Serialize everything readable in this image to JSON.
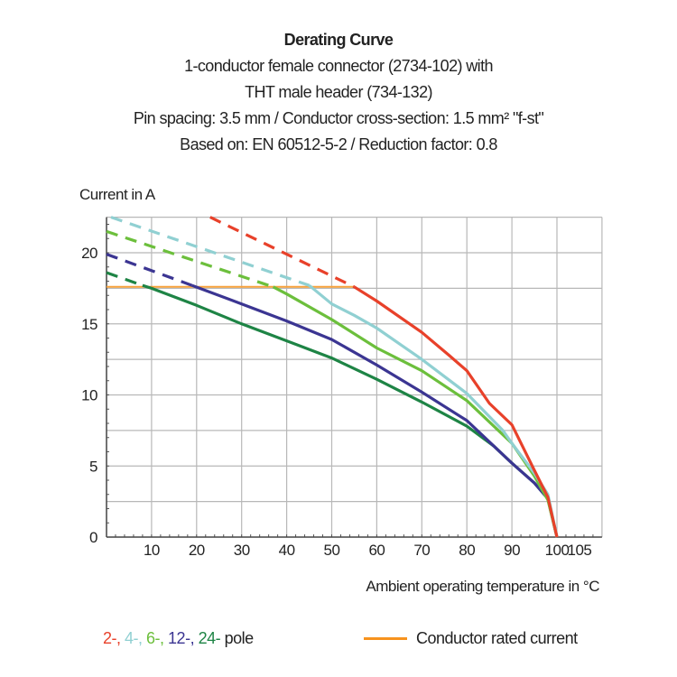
{
  "header": {
    "title": "Derating Curve",
    "lines": [
      "1-conductor female connector (2734-102) with",
      "THT male header (734-132)",
      "Pin spacing: 3.5 mm / Conductor cross-section: 1.5 mm² \"f-st\"",
      "Based on: EN 60512-5-2 / Reduction factor: 0.8"
    ]
  },
  "chart_data": {
    "type": "line",
    "title": "Derating Curve",
    "xlabel": "Ambient operating temperature in °C",
    "ylabel": "Current in A",
    "xlim": [
      0,
      110
    ],
    "ylim": [
      0,
      22.5
    ],
    "x_ticks": [
      10,
      20,
      30,
      40,
      50,
      60,
      70,
      80,
      90,
      100,
      105
    ],
    "y_ticks": [
      0,
      5,
      10,
      15,
      20
    ],
    "grid": true,
    "series": [
      {
        "name": "2-",
        "color": "#e8412a",
        "dashed": [
          [
            23,
            22.5
          ],
          [
            55,
            17.6
          ]
        ],
        "solid": [
          [
            55,
            17.6
          ],
          [
            60,
            16.6
          ],
          [
            70,
            14.4
          ],
          [
            76,
            12.8
          ],
          [
            80,
            11.7
          ],
          [
            85,
            9.4
          ],
          [
            90,
            7.9
          ],
          [
            95,
            4.7
          ],
          [
            98,
            2.8
          ],
          [
            100,
            0
          ]
        ]
      },
      {
        "name": "4-",
        "color": "#90d0d2",
        "dashed": [
          [
            1,
            22.5
          ],
          [
            45,
            17.7
          ]
        ],
        "solid": [
          [
            45,
            17.7
          ],
          [
            50,
            16.4
          ],
          [
            55,
            15.6
          ],
          [
            60,
            14.7
          ],
          [
            70,
            12.5
          ],
          [
            80,
            10.1
          ],
          [
            88,
            7.5
          ],
          [
            90,
            6.6
          ],
          [
            95,
            4.5
          ],
          [
            98,
            3.0
          ],
          [
            100,
            0
          ]
        ]
      },
      {
        "name": "6-",
        "color": "#6cbf3c",
        "dashed": [
          [
            0,
            21.5
          ],
          [
            37,
            17.6
          ]
        ],
        "solid": [
          [
            37,
            17.6
          ],
          [
            40,
            17.1
          ],
          [
            50,
            15.3
          ],
          [
            60,
            13.3
          ],
          [
            70,
            11.7
          ],
          [
            80,
            9.6
          ],
          [
            90,
            6.6
          ],
          [
            95,
            4.3
          ],
          [
            98,
            2.6
          ],
          [
            100,
            0
          ]
        ]
      },
      {
        "name": "12-",
        "color": "#3b3592",
        "dashed": [
          [
            0,
            19.9
          ],
          [
            19,
            17.7
          ]
        ],
        "solid": [
          [
            19,
            17.7
          ],
          [
            30,
            16.4
          ],
          [
            40,
            15.2
          ],
          [
            50,
            13.9
          ],
          [
            60,
            12.1
          ],
          [
            70,
            10.2
          ],
          [
            80,
            8.2
          ],
          [
            86,
            6.4
          ],
          [
            90,
            5.2
          ],
          [
            95,
            3.8
          ],
          [
            98,
            2.7
          ],
          [
            100,
            0
          ]
        ]
      },
      {
        "name": "24-",
        "color": "#1e8445",
        "dashed": [
          [
            0,
            18.6
          ],
          [
            8,
            17.7
          ]
        ],
        "solid": [
          [
            8,
            17.7
          ],
          [
            10,
            17.5
          ],
          [
            20,
            16.3
          ],
          [
            30,
            15.0
          ],
          [
            40,
            13.8
          ],
          [
            50,
            12.6
          ],
          [
            60,
            11.1
          ],
          [
            70,
            9.5
          ],
          [
            80,
            7.8
          ],
          [
            86,
            6.4
          ],
          [
            90,
            5.2
          ],
          [
            95,
            3.8
          ],
          [
            98,
            2.7
          ],
          [
            100,
            0
          ]
        ]
      }
    ],
    "rated_current": {
      "name": "Conductor rated current",
      "value": 17.6,
      "x_range": [
        0,
        55
      ],
      "color": "#f7a13a"
    },
    "legend": {
      "series_suffix": "pole",
      "placement": "bottom",
      "rated_label": "Conductor rated current",
      "rated_color": "#f7931e"
    }
  }
}
